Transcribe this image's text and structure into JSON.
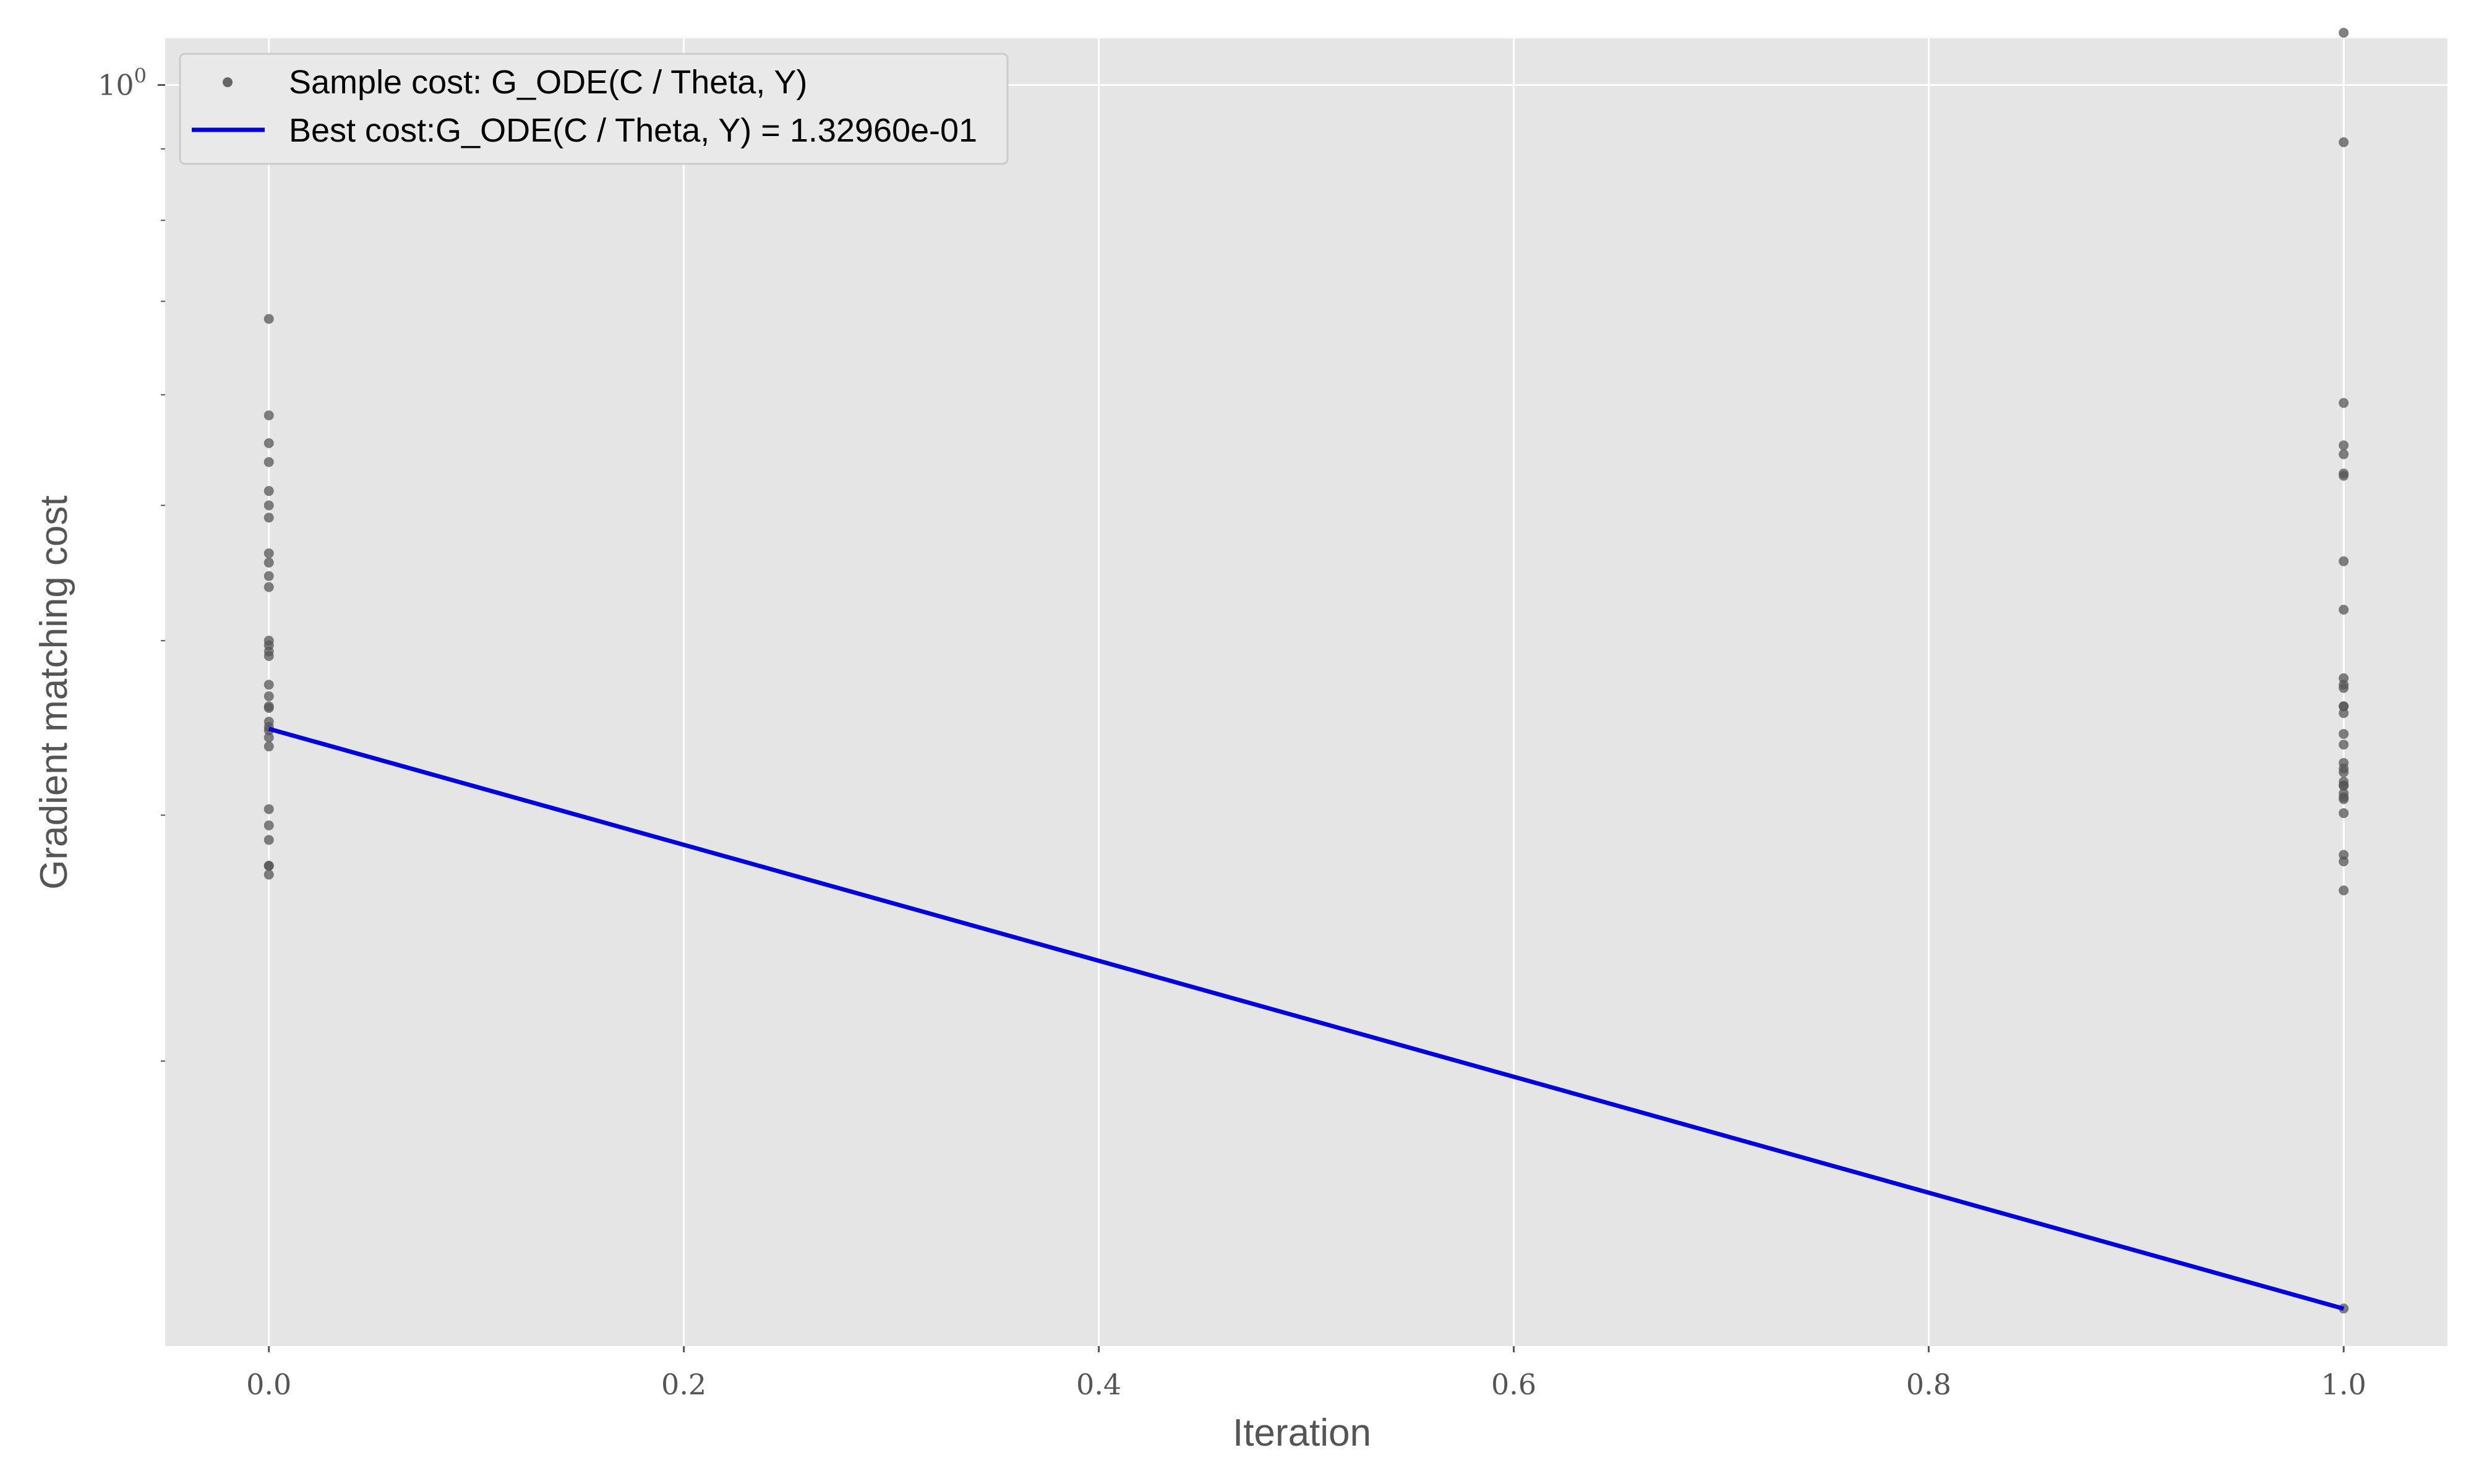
{
  "chart_data": {
    "type": "scatter",
    "title": "",
    "xlabel": "Iteration",
    "ylabel": "Gradient matching cost",
    "xlim": [
      -0.05,
      1.05
    ],
    "ylim": [
      0.125,
      1.08
    ],
    "yscale": "log",
    "x_ticks": [
      {
        "value": 0.0,
        "label": "0.0"
      },
      {
        "value": 0.2,
        "label": "0.2"
      },
      {
        "value": 0.4,
        "label": "0.4"
      },
      {
        "value": 0.6,
        "label": "0.6"
      },
      {
        "value": 0.8,
        "label": "0.8"
      },
      {
        "value": 1.0,
        "label": "1.0"
      }
    ],
    "y_major_ticks": [
      {
        "value": 1.0,
        "base": "10",
        "exp": "0"
      }
    ],
    "y_minor_ticks": [
      0.2,
      0.3,
      0.4,
      0.5,
      0.6,
      0.7,
      0.8,
      0.9
    ],
    "grid": true,
    "legend_position": "top-left",
    "series": [
      {
        "name": "Sample cost: G_ODE(C / Theta, Y)",
        "kind": "scatter",
        "color": "#555555",
        "x": [
          0,
          0,
          0,
          0,
          0,
          0,
          0,
          0,
          0,
          0,
          0,
          0,
          0,
          0,
          0,
          0,
          0,
          0,
          0,
          0,
          0,
          0,
          0,
          0,
          0,
          0,
          0,
          0,
          0,
          0,
          1,
          1,
          1,
          1,
          1,
          1,
          1,
          1,
          1,
          1,
          1,
          1,
          1,
          1,
          1,
          1,
          1,
          1,
          1,
          1,
          1,
          1,
          1,
          1,
          1,
          1,
          1,
          1,
          1,
          1,
          1
        ],
        "y": [
          0.68,
          0.58,
          0.554,
          0.537,
          0.512,
          0.5,
          0.49,
          0.462,
          0.455,
          0.445,
          0.437,
          0.4,
          0.397,
          0.393,
          0.39,
          0.372,
          0.365,
          0.359,
          0.358,
          0.35,
          0.347,
          0.345,
          0.341,
          0.336,
          0.303,
          0.295,
          0.288,
          0.276,
          0.272,
          0.276,
          1.09,
          0.91,
          0.592,
          0.552,
          0.544,
          0.527,
          0.525,
          0.456,
          0.421,
          0.376,
          0.372,
          0.37,
          0.359,
          0.359,
          0.355,
          0.343,
          0.337,
          0.327,
          0.324,
          0.322,
          0.317,
          0.315,
          0.315,
          0.311,
          0.309,
          0.308,
          0.301,
          0.281,
          0.278,
          0.265,
          0.133
        ]
      },
      {
        "name": "Best cost:G_ODE(C / Theta, Y) = 1.32960e-01",
        "kind": "line",
        "color": "#0000dd",
        "x": [
          0,
          1
        ],
        "y": [
          0.3459,
          0.13296
        ]
      }
    ]
  }
}
